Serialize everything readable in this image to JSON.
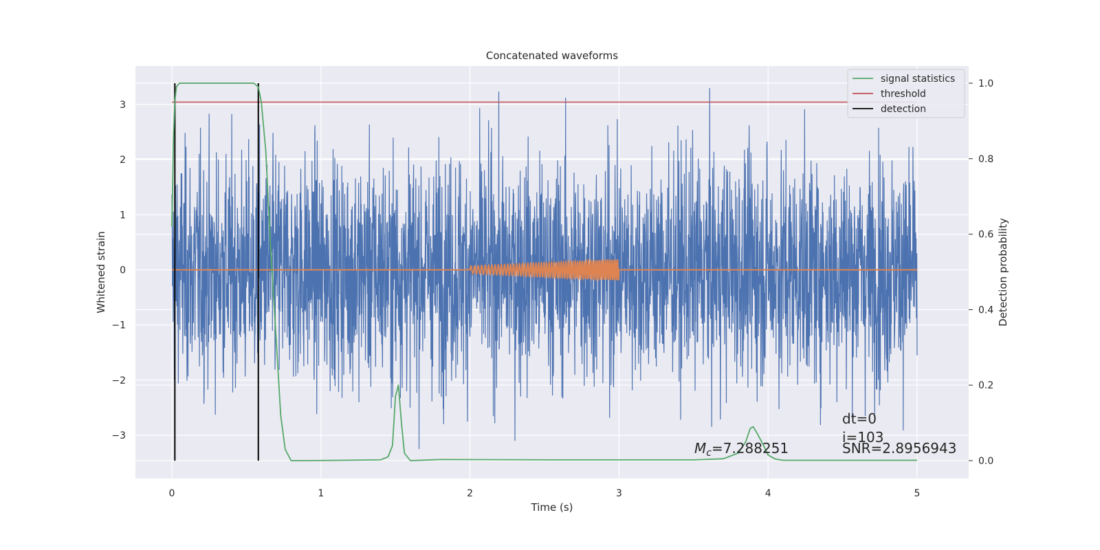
{
  "chart_data": {
    "type": "line",
    "title": "Concatenated waveforms",
    "xlabel": "Time (s)",
    "ylabel": "Whitened strain",
    "ylabel_right": "Detection probability",
    "xlim": [
      -0.25,
      5.35
    ],
    "ylim": [
      -3.8,
      3.7
    ],
    "ylim_right": [
      -0.05,
      1.04
    ],
    "xticks": [
      0,
      1,
      2,
      3,
      4,
      5
    ],
    "xtick_labels": [
      "0",
      "1",
      "2",
      "3",
      "4",
      "5"
    ],
    "yticks": [
      -3,
      -2,
      -1,
      0,
      1,
      2,
      3
    ],
    "ytick_labels": [
      "−3",
      "−2",
      "−1",
      "0",
      "1",
      "2",
      "3"
    ],
    "yticks_right": [
      0.0,
      0.2,
      0.4,
      0.6,
      0.8,
      1.0
    ],
    "ytick_labels_right": [
      "0.0",
      "0.2",
      "0.4",
      "0.6",
      "0.8",
      "1.0"
    ],
    "grid": true,
    "legend_position": "top-right",
    "legend": [
      {
        "label": "signal statistics",
        "color": "#55a868"
      },
      {
        "label": "threshold",
        "color": "#c44e52"
      },
      {
        "label": "detection",
        "color": "#000000"
      }
    ],
    "series": [
      {
        "type": "noise",
        "color": "#4c72b0",
        "x_range": [
          0,
          5
        ],
        "typical_amplitude": 1.0,
        "min": -3.45,
        "max": 3.38
      },
      {
        "type": "chirp",
        "color": "#dd8452",
        "x_range": [
          2,
          3
        ],
        "amplitude_start": 0.07,
        "amplitude_end": 0.19,
        "baseline": 0.0
      },
      {
        "name": "signal statistics",
        "axis": "right",
        "color": "#55a868",
        "x": [
          0.0,
          0.01,
          0.02,
          0.03,
          0.05,
          0.1,
          0.55,
          0.58,
          0.6,
          0.63,
          0.66,
          0.7,
          0.73,
          0.76,
          0.8,
          0.9,
          1.4,
          1.45,
          1.48,
          1.5,
          1.52,
          1.54,
          1.56,
          1.6,
          1.8,
          2.6,
          3.5,
          3.7,
          3.8,
          3.85,
          3.88,
          3.9,
          3.93,
          3.97,
          4.0,
          4.05,
          4.1,
          4.2,
          5.0
        ],
        "y": [
          0.62,
          0.85,
          0.95,
          0.99,
          1.0,
          1.0,
          1.0,
          0.99,
          0.95,
          0.82,
          0.58,
          0.32,
          0.12,
          0.03,
          0.0,
          0.0,
          0.002,
          0.01,
          0.04,
          0.17,
          0.2,
          0.1,
          0.02,
          0.0,
          0.003,
          0.002,
          0.002,
          0.005,
          0.02,
          0.05,
          0.085,
          0.09,
          0.07,
          0.04,
          0.015,
          0.004,
          0.001,
          0.001,
          0.001
        ]
      },
      {
        "name": "threshold",
        "axis": "right",
        "color": "#c44e52",
        "x": [
          0,
          5
        ],
        "y": [
          0.95,
          0.95
        ]
      },
      {
        "name": "detection",
        "axis": "right",
        "color": "#000000",
        "vlines": [
          0.02,
          0.58
        ],
        "y_range": [
          0.0,
          1.0
        ]
      }
    ],
    "annotations": [
      {
        "text": "M_c=7.288251",
        "x": 3.5,
        "y": 0.02
      },
      {
        "text": "dt=0",
        "x": 4.5,
        "y": 0.1
      },
      {
        "text": "i=103",
        "x": 4.5,
        "y": 0.055
      },
      {
        "text": "SNR=2.8956943",
        "x": 4.5,
        "y": 0.02
      }
    ]
  }
}
